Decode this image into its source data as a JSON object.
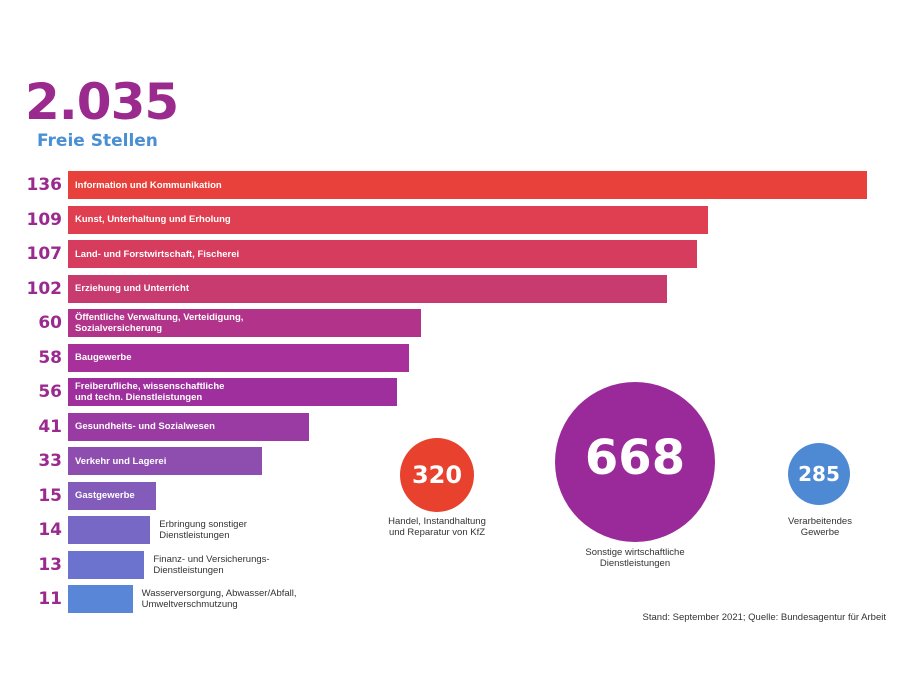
{
  "header": {
    "total": "2.035",
    "subtitle": "Freie Stellen"
  },
  "chart_data": {
    "type": "bar",
    "orientation": "horizontal",
    "title": "Freie Stellen",
    "categories": [
      "Information und Kommunikation",
      "Kunst, Unterhaltung und Erholung",
      "Land- und Forstwirtschaft, Fischerei",
      "Erziehung und Unterricht",
      "Öffentliche Verwaltung, Verteidigung,\nSozialversicherung",
      "Baugewerbe",
      "Freiberufliche, wissenschaftliche\nund techn. Dienstleistungen",
      "Gesundheits- und Sozialwesen",
      "Verkehr und Lagerei",
      "Gastgewerbe",
      "Erbringung sonstiger\nDienstleistungen",
      "Finanz- und Versicherungs-\nDienstleistungen",
      "Wasserversorgung, Abwasser/Abfall,\nUmweltverschmutzung"
    ],
    "values": [
      136,
      109,
      107,
      102,
      60,
      58,
      56,
      41,
      33,
      15,
      14,
      13,
      11
    ],
    "value_labels": [
      "136",
      "109",
      "107",
      "102",
      "60",
      "58",
      "56",
      "41",
      "33",
      "15",
      "14",
      "13",
      "11"
    ],
    "xlim": [
      0,
      136
    ],
    "colors": [
      "#e8413b",
      "#df3f50",
      "#d63c5d",
      "#c73b6e",
      "#b2348a",
      "#a8309a",
      "#a02f9e",
      "#9a3aa3",
      "#8e4eb0",
      "#835bbb",
      "#7868c6",
      "#6c73cf",
      "#5a86d8"
    ],
    "bubbles": [
      {
        "value": "320",
        "label": "Handel, Instandhaltung\nund Reparatur von KfZ",
        "color": "#e8412d"
      },
      {
        "value": "668",
        "label": "Sonstige wirtschaftliche\nDienstleistungen",
        "color": "#9a2a9a"
      },
      {
        "value": "285",
        "label": "Verarbeitendes\nGewerbe",
        "color": "#4e8ad4"
      }
    ]
  },
  "footer": {
    "source": "Stand: September 2021; Quelle: Bundesagentur für Arbeit"
  }
}
